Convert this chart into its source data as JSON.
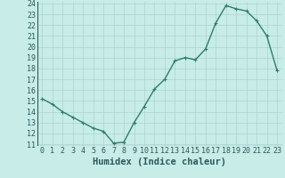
{
  "x": [
    0,
    1,
    2,
    3,
    4,
    5,
    6,
    7,
    8,
    9,
    10,
    11,
    12,
    13,
    14,
    15,
    16,
    17,
    18,
    19,
    20,
    21,
    22,
    23
  ],
  "y": [
    15.2,
    14.7,
    14.0,
    13.5,
    13.0,
    12.5,
    12.2,
    11.1,
    11.2,
    13.0,
    14.5,
    16.1,
    17.0,
    18.7,
    19.0,
    18.8,
    19.8,
    22.2,
    23.8,
    23.5,
    23.3,
    22.4,
    21.0,
    17.8
  ],
  "line_color": "#2e7d6e",
  "marker": "+",
  "bg_color": "#c8ece8",
  "grid_color": "#aad6d0",
  "xlabel": "Humidex (Indice chaleur)",
  "ylim": [
    11,
    24
  ],
  "xlim": [
    -0.5,
    23.5
  ],
  "yticks": [
    11,
    12,
    13,
    14,
    15,
    16,
    17,
    18,
    19,
    20,
    21,
    22,
    23,
    24
  ],
  "xticks": [
    0,
    1,
    2,
    3,
    4,
    5,
    6,
    7,
    8,
    9,
    10,
    11,
    12,
    13,
    14,
    15,
    16,
    17,
    18,
    19,
    20,
    21,
    22,
    23
  ],
  "font_color": "#2a5a5a",
  "xlabel_fontsize": 7.5,
  "tick_fontsize": 6.0,
  "linewidth": 1.0,
  "markersize": 3.5,
  "markeredgewidth": 0.8
}
